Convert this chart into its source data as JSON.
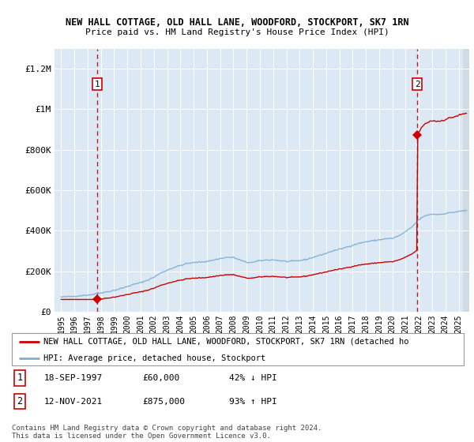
{
  "title1": "NEW HALL COTTAGE, OLD HALL LANE, WOODFORD, STOCKPORT, SK7 1RN",
  "title2": "Price paid vs. HM Land Registry's House Price Index (HPI)",
  "background_color": "#dce9f5",
  "plot_bg_color": "#dce9f5",
  "hpi_color": "#7aaed6",
  "sale_color": "#cc0000",
  "annotation_color": "#cc0000",
  "legend_label_sale": "NEW HALL COTTAGE, OLD HALL LANE, WOODFORD, STOCKPORT, SK7 1RN (detached ho",
  "legend_label_hpi": "HPI: Average price, detached house, Stockport",
  "sale_points": [
    {
      "date": 1997.71,
      "price": 60000,
      "label": "1"
    },
    {
      "date": 2021.87,
      "price": 875000,
      "label": "2"
    }
  ],
  "annotation1_date": "18-SEP-1997",
  "annotation1_price": "£60,000",
  "annotation1_hpi": "42% ↓ HPI",
  "annotation2_date": "12-NOV-2021",
  "annotation2_price": "£875,000",
  "annotation2_hpi": "93% ↑ HPI",
  "footer": "Contains HM Land Registry data © Crown copyright and database right 2024.\nThis data is licensed under the Open Government Licence v3.0.",
  "ylim": [
    0,
    1300000
  ],
  "yticks": [
    0,
    200000,
    400000,
    600000,
    800000,
    1000000,
    1200000
  ],
  "ytick_labels": [
    "£0",
    "£200K",
    "£400K",
    "£600K",
    "£800K",
    "£1M",
    "£1.2M"
  ],
  "xmin": 1994.5,
  "xmax": 2025.8,
  "xtick_years": [
    1995,
    1996,
    1997,
    1998,
    1999,
    2000,
    2001,
    2002,
    2003,
    2004,
    2005,
    2006,
    2007,
    2008,
    2009,
    2010,
    2011,
    2012,
    2013,
    2014,
    2015,
    2016,
    2017,
    2018,
    2019,
    2020,
    2021,
    2022,
    2023,
    2024,
    2025
  ],
  "hpi_base_1997": 73000,
  "sale1_price": 60000,
  "sale1_date": 1997.71,
  "sale2_price": 875000,
  "sale2_date": 2021.87
}
